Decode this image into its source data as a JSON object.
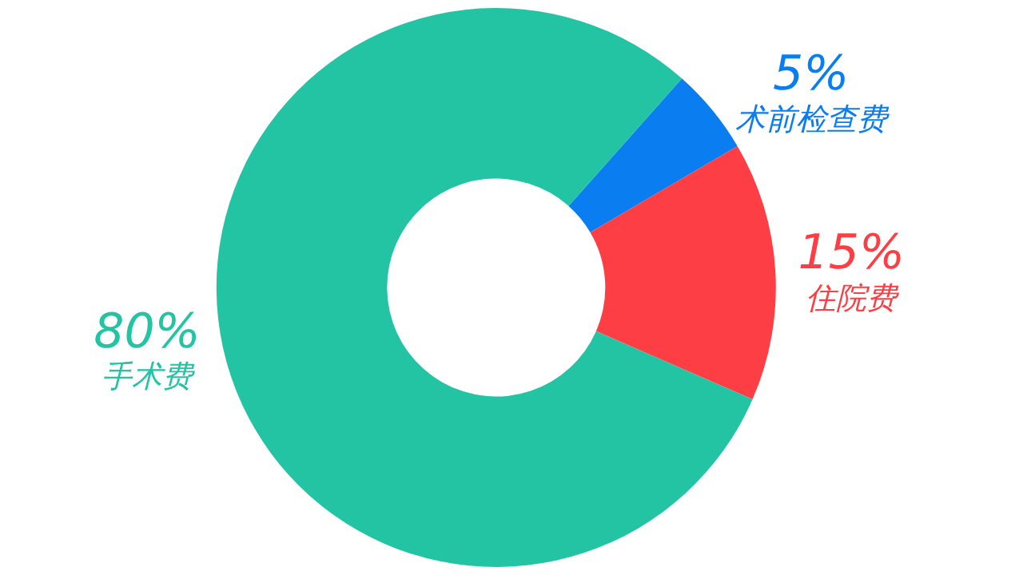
{
  "chart_data": {
    "type": "donut",
    "categories": [
      "术前检查费",
      "住院费",
      "手术费"
    ],
    "values": [
      5,
      15,
      80
    ],
    "colors": [
      "#0a7ef0",
      "#fd3f45",
      "#22c4a4"
    ],
    "value_labels": [
      "5%",
      "15%",
      "80%"
    ],
    "legend": false
  }
}
